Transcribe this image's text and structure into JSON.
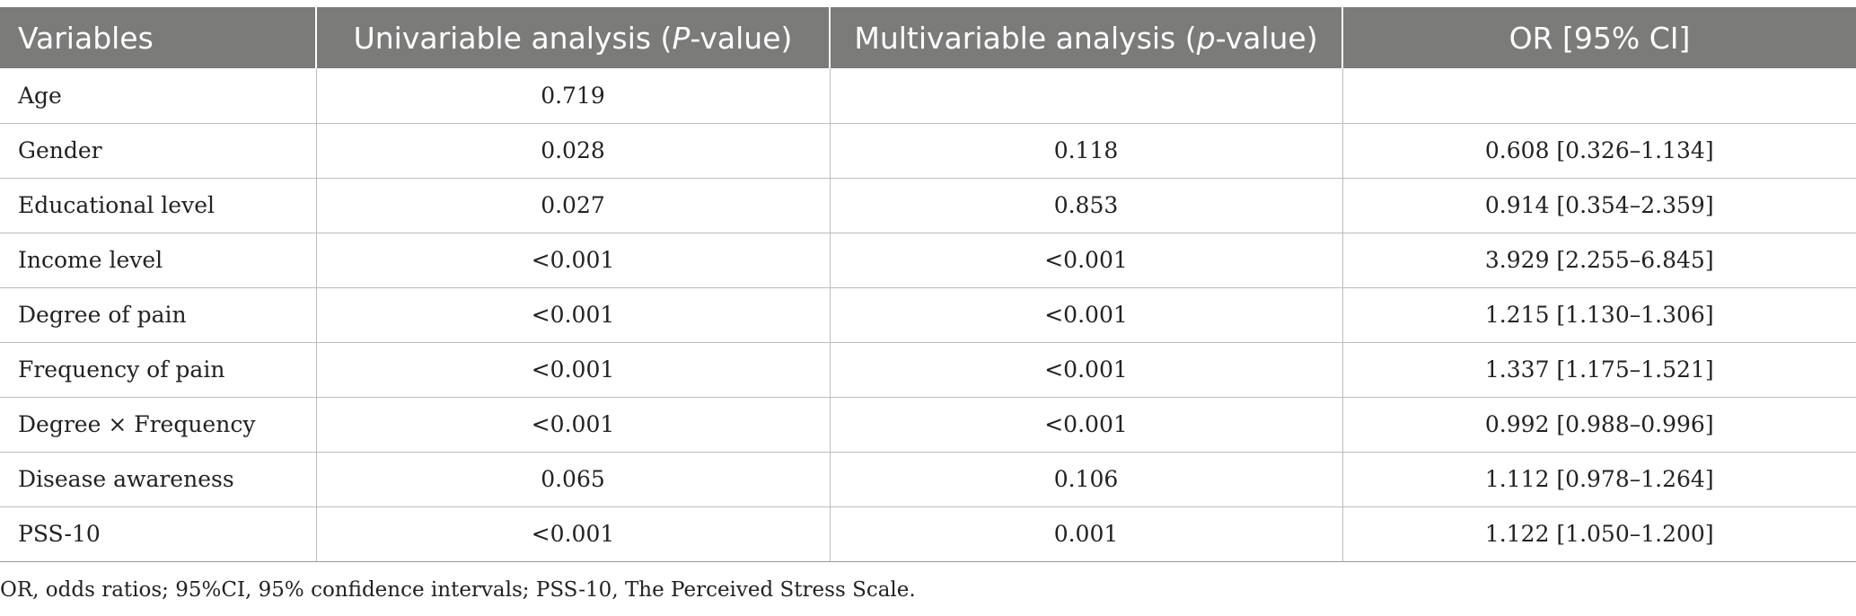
{
  "table": {
    "headers": [
      {
        "pre": "Variables",
        "italic": "",
        "post": ""
      },
      {
        "pre": "Univariable analysis (",
        "italic": "P",
        "post": "-value)"
      },
      {
        "pre": "Multivariable analysis (",
        "italic": "p",
        "post": "-value)"
      },
      {
        "pre": "OR [95% CI]",
        "italic": "",
        "post": ""
      }
    ],
    "rows": [
      [
        "Age",
        "0.719",
        "",
        ""
      ],
      [
        "Gender",
        "0.028",
        "0.118",
        "0.608 [0.326–1.134]"
      ],
      [
        "Educational level",
        "0.027",
        "0.853",
        "0.914 [0.354–2.359]"
      ],
      [
        "Income level",
        "<0.001",
        "<0.001",
        "3.929 [2.255–6.845]"
      ],
      [
        "Degree of pain",
        "<0.001",
        "<0.001",
        "1.215 [1.130–1.306]"
      ],
      [
        "Frequency of pain",
        "<0.001",
        "<0.001",
        "1.337 [1.175–1.521]"
      ],
      [
        "Degree × Frequency",
        "<0.001",
        "<0.001",
        "0.992 [0.988–0.996]"
      ],
      [
        "Disease awareness",
        "0.065",
        "0.106",
        "1.112 [0.978–1.264]"
      ],
      [
        "PSS-10",
        "<0.001",
        "0.001",
        "1.122 [1.050–1.200]"
      ]
    ]
  },
  "footnote": "OR, odds ratios; 95%CI, 95% confidence intervals; PSS-10, The Perceived Stress Scale."
}
